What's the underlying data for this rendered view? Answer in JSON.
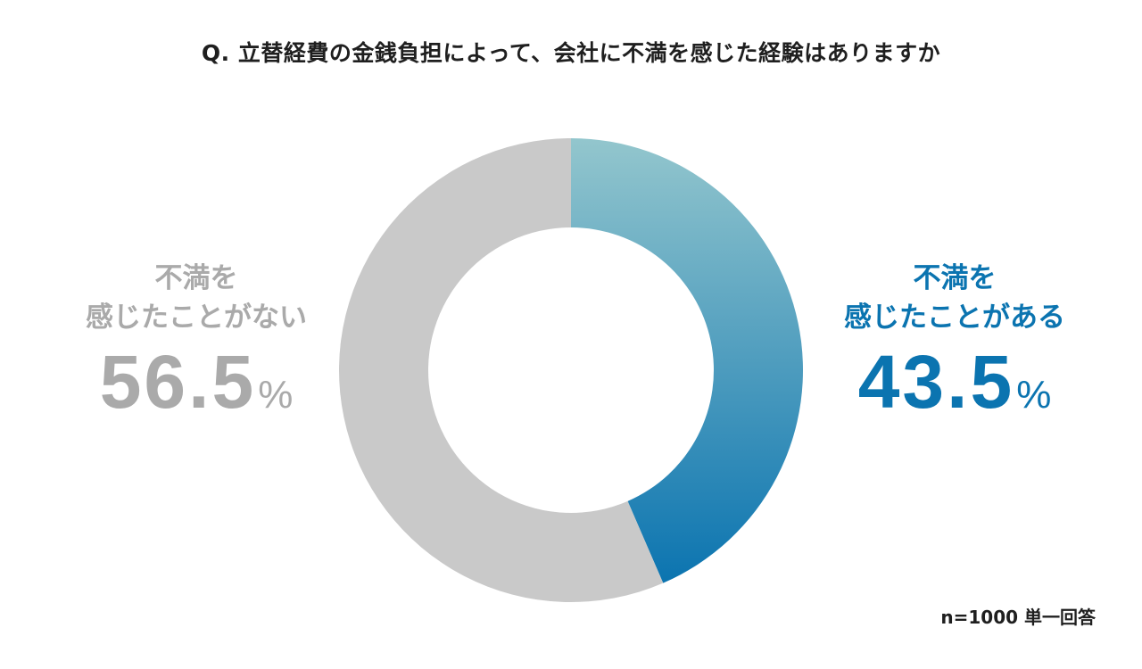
{
  "title": "Q. 立替経費の金銭負担によって、会社に不満を感じた経験はありますか",
  "note": "n=1000 単一回答",
  "labels": {
    "left": {
      "line1": "不満を",
      "line2": "感じたことがない",
      "value": "56.5",
      "unit": "%"
    },
    "right": {
      "line1": "不満を",
      "line2": "感じたことがある",
      "value": "43.5",
      "unit": "%"
    }
  },
  "colors": {
    "accent": "#0b74b0",
    "accent_light": "#93c6cd",
    "gray": "#c9c9c9",
    "gray_text": "#aaaaaa"
  },
  "chart_data": {
    "type": "pie",
    "donut": true,
    "title": "Q. 立替経費の金銭負担によって、会社に不満を感じた経験はありますか",
    "categories": [
      "不満を感じたことがある",
      "不満を感じたことがない"
    ],
    "values": [
      43.5,
      56.5
    ],
    "unit": "%",
    "n": 1000
  }
}
